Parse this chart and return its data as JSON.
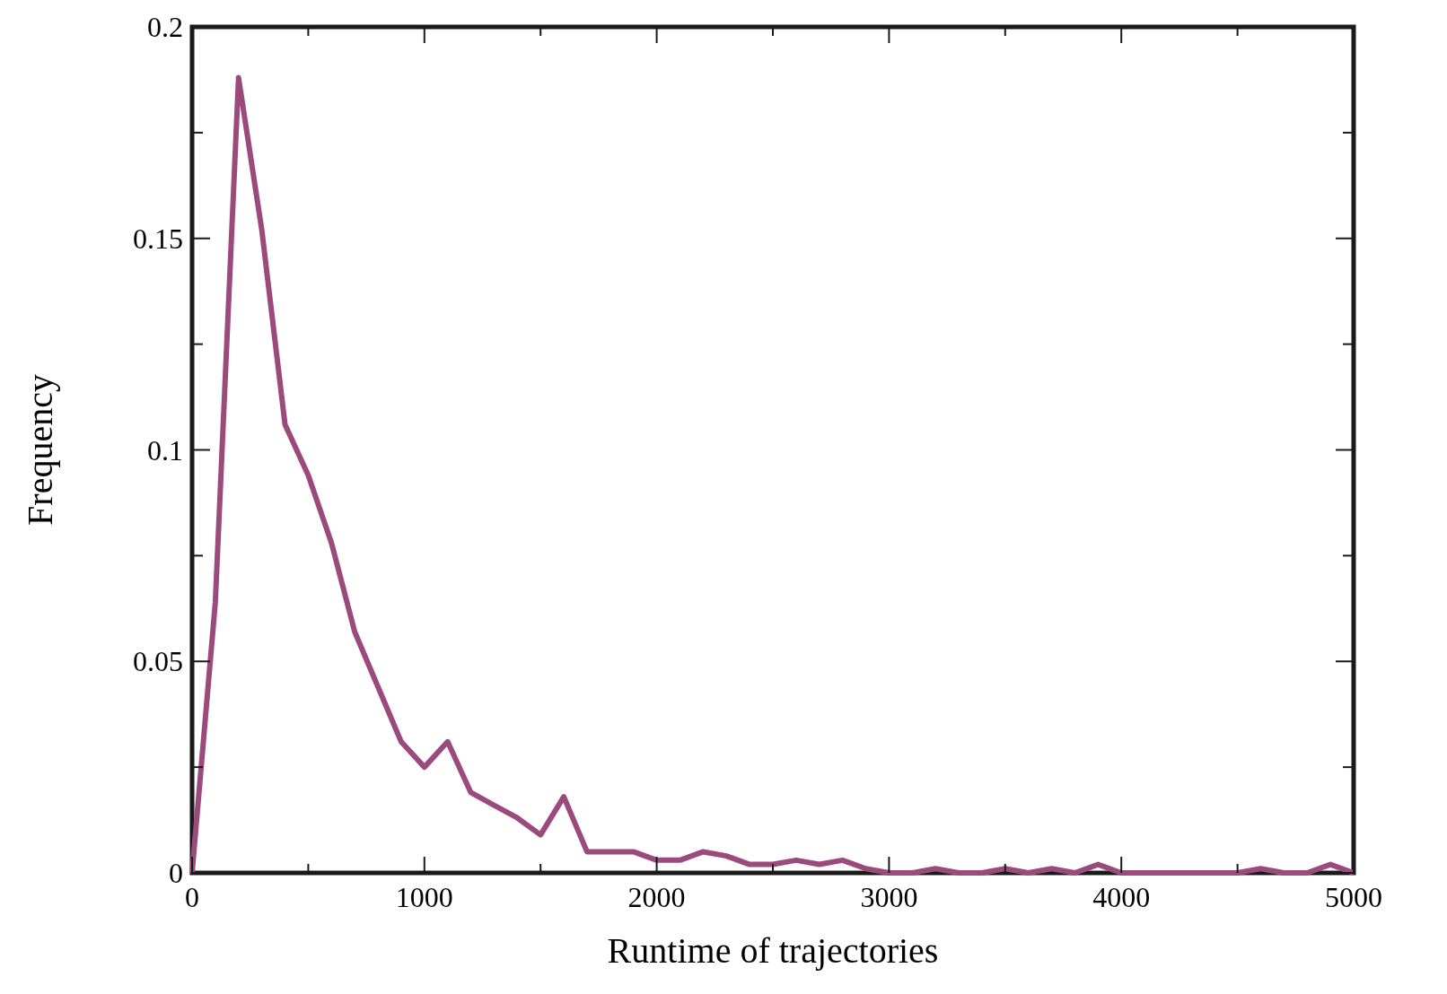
{
  "chart_data": {
    "type": "line",
    "xlabel": "Runtime of trajectories",
    "ylabel": "Frequency",
    "xlim": [
      0,
      5000
    ],
    "ylim": [
      0,
      0.2
    ],
    "xticks": [
      0,
      {
        "value": 500,
        "label": null
      },
      1000,
      {
        "value": 1500,
        "label": null
      },
      2000,
      {
        "value": 2500,
        "label": null
      },
      3000,
      {
        "value": 3500,
        "label": null
      },
      4000,
      {
        "value": 4500,
        "label": null
      },
      5000
    ],
    "yticks": [
      0,
      {
        "value": 0.025,
        "label": null
      },
      0.05,
      {
        "value": 0.075,
        "label": null
      },
      0.1,
      {
        "value": 0.125,
        "label": null
      },
      0.15,
      {
        "value": 0.175,
        "label": null
      },
      0.2
    ],
    "grid": false,
    "marker": "none",
    "line_style": "solid",
    "series": [
      {
        "color": "#9b4a7e",
        "x": [
          0,
          100,
          200,
          300,
          400,
          500,
          600,
          700,
          800,
          900,
          1000,
          1100,
          1200,
          1300,
          1400,
          1500,
          1600,
          1700,
          1800,
          1900,
          2000,
          2100,
          2200,
          2300,
          2400,
          2500,
          2600,
          2700,
          2800,
          2900,
          3000,
          3100,
          3200,
          3300,
          3400,
          3500,
          3600,
          3700,
          3800,
          3900,
          4000,
          4100,
          4200,
          4300,
          4400,
          4500,
          4600,
          4700,
          4800,
          4900,
          5000
        ],
        "values": [
          0,
          0.064,
          0.188,
          0.152,
          0.106,
          0.094,
          0.078,
          0.057,
          0.044,
          0.031,
          0.025,
          0.031,
          0.019,
          0.016,
          0.013,
          0.009,
          0.018,
          0.005,
          0.005,
          0.005,
          0.003,
          0.003,
          0.005,
          0.004,
          0.002,
          0.002,
          0.003,
          0.002,
          0.003,
          0.001,
          0,
          0,
          0.001,
          0,
          0,
          0.001,
          0,
          0.001,
          0,
          0.002,
          0,
          0,
          0,
          0,
          0,
          0,
          0.001,
          0,
          0,
          0.002,
          0
        ]
      }
    ]
  }
}
